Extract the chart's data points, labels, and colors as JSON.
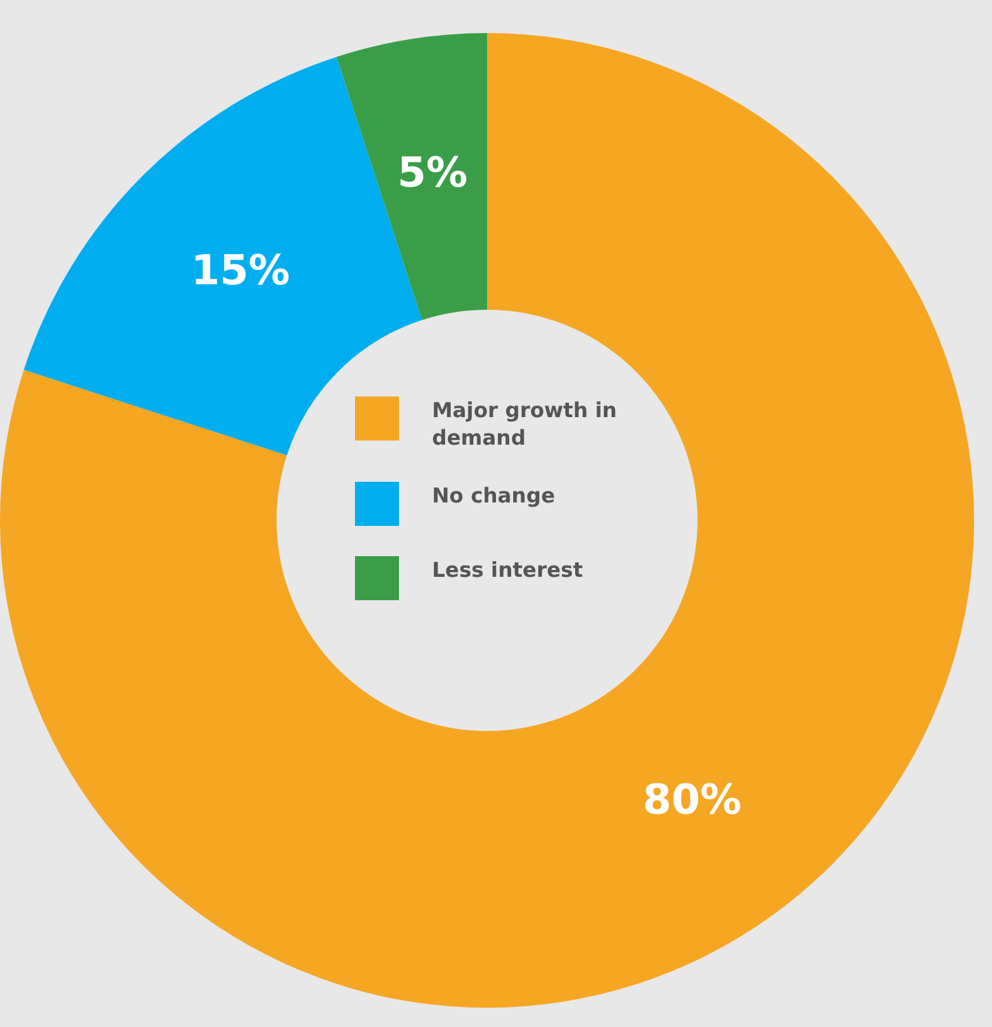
{
  "chart_data": {
    "type": "donut",
    "categories": [
      "Major growth in demand",
      "No change",
      "Less interest"
    ],
    "values": [
      80,
      15,
      5
    ],
    "colors": [
      "#f5a623",
      "#00aeef",
      "#3a9e48"
    ],
    "value_labels": [
      "80%",
      "15%",
      "5%"
    ],
    "legend": "center"
  }
}
